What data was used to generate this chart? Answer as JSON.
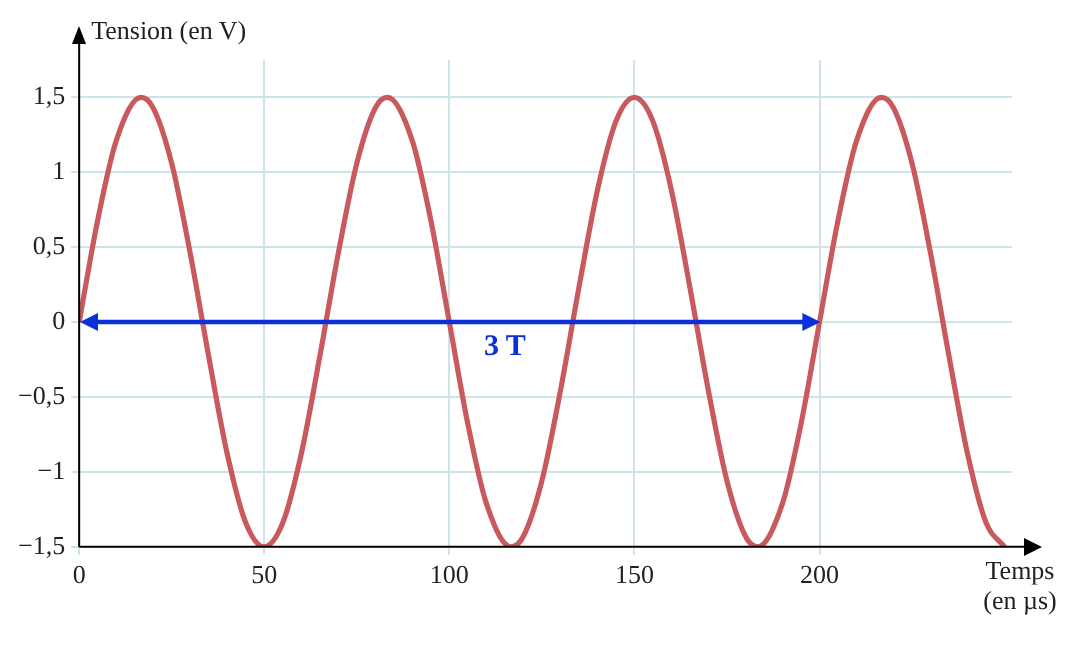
{
  "chart_data": {
    "type": "line",
    "xlabel": "Temps\n(en µs)",
    "ylabel": "Tension (en V)",
    "xlim": [
      0,
      252
    ],
    "xticks": [
      0,
      50,
      100,
      150,
      200
    ],
    "ylim": [
      -1.5,
      1.75
    ],
    "yticks": [
      {
        "value": -1.5,
        "label": "−1,5"
      },
      {
        "value": -1,
        "label": "−1"
      },
      {
        "value": -0.5,
        "label": "−0,5"
      },
      0,
      {
        "value": 0.5,
        "label": "0,5"
      },
      1,
      {
        "value": 1.5,
        "label": "1,5"
      }
    ],
    "grid": true,
    "legend": false,
    "marker": "none",
    "line_style": "solid",
    "annotations": [
      "3 T"
    ],
    "series": [
      {
        "color": "#c85a5e",
        "x": [
          0,
          5,
          10,
          16.7,
          20,
          25,
          30,
          35,
          40,
          45,
          50,
          55,
          60,
          65,
          70,
          75,
          80,
          83.3,
          90,
          95,
          100,
          105,
          110,
          116.7,
          120,
          125,
          130,
          135,
          140,
          145,
          150,
          155,
          160,
          165,
          170,
          175,
          180,
          183.3,
          190,
          195,
          200,
          205,
          210,
          216.7,
          220,
          225,
          230,
          235,
          240,
          245,
          250
        ],
        "values": [
          0,
          0.68,
          1.21,
          1.5,
          1.43,
          1.06,
          0.46,
          -0.23,
          -0.88,
          -1.34,
          -1.5,
          -1.34,
          -0.88,
          -0.23,
          0.46,
          1.06,
          1.43,
          1.5,
          1.21,
          0.68,
          0,
          -0.68,
          -1.21,
          -1.5,
          -1.43,
          -1.06,
          -0.46,
          0.23,
          0.88,
          1.34,
          1.5,
          1.34,
          0.88,
          0.23,
          -0.46,
          -1.06,
          -1.43,
          -1.5,
          -1.21,
          -0.68,
          0,
          0.68,
          1.21,
          1.5,
          1.43,
          1.06,
          0.46,
          -0.23,
          -0.88,
          -1.34,
          -1.5
        ]
      }
    ]
  }
}
